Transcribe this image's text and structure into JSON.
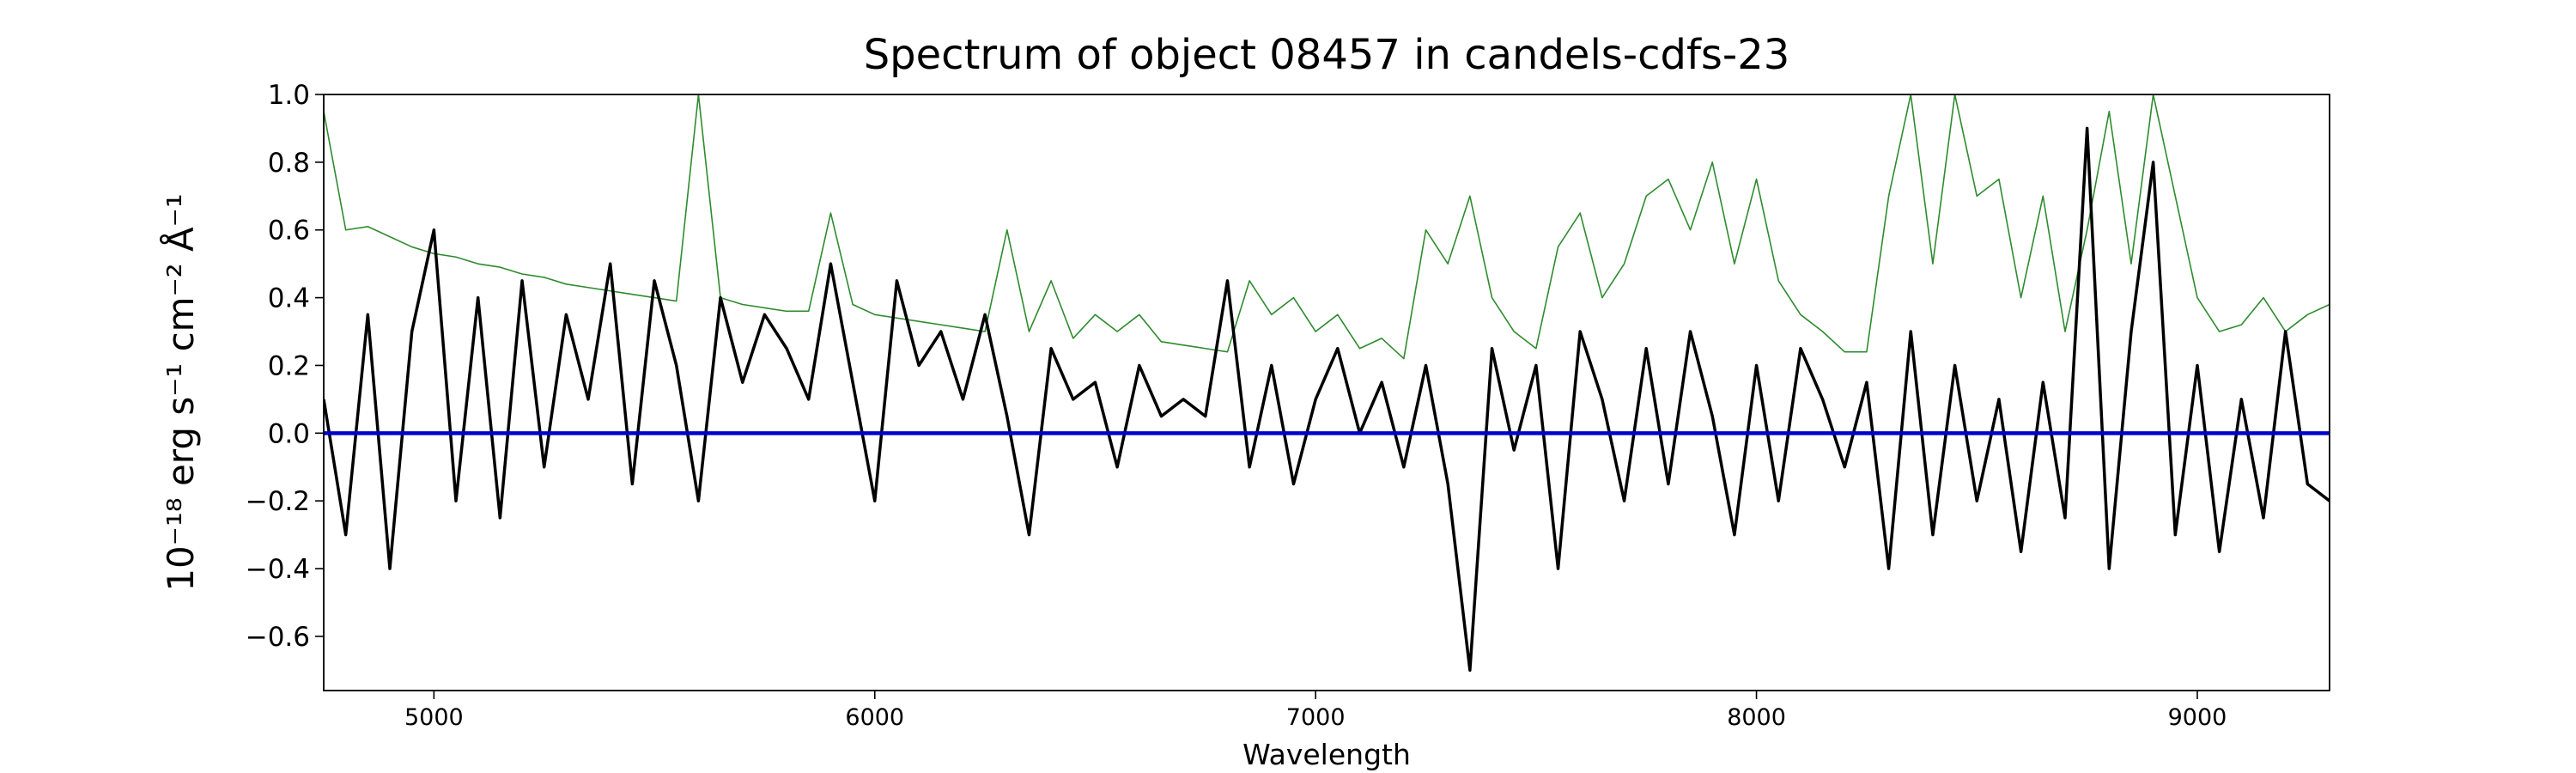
{
  "chart_data": {
    "type": "line",
    "title": "Spectrum of object 08457 in candels-cdfs-23",
    "xlabel": "Wavelength",
    "ylabel": "10⁻¹⁸ erg s⁻¹ cm⁻² Å⁻¹",
    "x": [
      4750,
      4800,
      4850,
      4900,
      4950,
      5000,
      5050,
      5100,
      5150,
      5200,
      5250,
      5300,
      5350,
      5400,
      5450,
      5500,
      5550,
      5600,
      5650,
      5700,
      5750,
      5800,
      5850,
      5900,
      5950,
      6000,
      6050,
      6100,
      6150,
      6200,
      6250,
      6300,
      6350,
      6400,
      6450,
      6500,
      6550,
      6600,
      6650,
      6700,
      6750,
      6800,
      6850,
      6900,
      6950,
      7000,
      7050,
      7100,
      7150,
      7200,
      7250,
      7300,
      7350,
      7400,
      7450,
      7500,
      7550,
      7600,
      7650,
      7700,
      7750,
      7800,
      7850,
      7900,
      7950,
      8000,
      8050,
      8100,
      8150,
      8200,
      8250,
      8300,
      8350,
      8400,
      8450,
      8500,
      8550,
      8600,
      8650,
      8700,
      8750,
      8800,
      8850,
      8900,
      8950,
      9000,
      9050,
      9100,
      9150,
      9200,
      9250,
      9300
    ],
    "series": [
      {
        "color": "#2e8b2e",
        "width": 1.6,
        "values": [
          0.95,
          0.6,
          0.61,
          0.58,
          0.55,
          0.53,
          0.52,
          0.5,
          0.49,
          0.47,
          0.46,
          0.44,
          0.43,
          0.42,
          0.41,
          0.4,
          0.39,
          1.0,
          0.4,
          0.38,
          0.37,
          0.36,
          0.36,
          0.65,
          0.38,
          0.35,
          0.34,
          0.33,
          0.32,
          0.31,
          0.3,
          0.6,
          0.3,
          0.45,
          0.28,
          0.35,
          0.3,
          0.35,
          0.27,
          0.26,
          0.25,
          0.24,
          0.45,
          0.35,
          0.4,
          0.3,
          0.35,
          0.25,
          0.28,
          0.22,
          0.6,
          0.5,
          0.7,
          0.4,
          0.3,
          0.25,
          0.55,
          0.65,
          0.4,
          0.5,
          0.7,
          0.75,
          0.6,
          0.8,
          0.5,
          0.75,
          0.45,
          0.35,
          0.3,
          0.24,
          0.24,
          0.7,
          1.0,
          0.5,
          1.0,
          0.7,
          0.75,
          0.4,
          0.7,
          0.3,
          0.6,
          0.95,
          0.5,
          1.0,
          0.7,
          0.4,
          0.3,
          0.32,
          0.4,
          0.3,
          0.35,
          0.38
        ]
      },
      {
        "color": "#000000",
        "width": 3.5,
        "values": [
          0.1,
          -0.3,
          0.35,
          -0.4,
          0.3,
          0.6,
          -0.2,
          0.4,
          -0.25,
          0.45,
          -0.1,
          0.35,
          0.1,
          0.5,
          -0.15,
          0.45,
          0.2,
          -0.2,
          0.4,
          0.15,
          0.35,
          0.25,
          0.1,
          0.5,
          0.15,
          -0.2,
          0.45,
          0.2,
          0.3,
          0.1,
          0.35,
          0.05,
          -0.3,
          0.25,
          0.1,
          0.15,
          -0.1,
          0.2,
          0.05,
          0.1,
          0.05,
          0.45,
          -0.1,
          0.2,
          -0.15,
          0.1,
          0.25,
          0.0,
          0.15,
          -0.1,
          0.2,
          -0.15,
          -0.7,
          0.25,
          -0.05,
          0.2,
          -0.4,
          0.3,
          0.1,
          -0.2,
          0.25,
          -0.15,
          0.3,
          0.05,
          -0.3,
          0.2,
          -0.2,
          0.25,
          0.1,
          -0.1,
          0.15,
          -0.4,
          0.3,
          -0.3,
          0.2,
          -0.2,
          0.1,
          -0.35,
          0.15,
          -0.25,
          0.9,
          -0.4,
          0.3,
          0.8,
          -0.3,
          0.2,
          -0.35,
          0.1,
          -0.25,
          0.3,
          -0.15,
          -0.2
        ]
      },
      {
        "color": "#0000cc",
        "width": 4.5,
        "values": [
          0,
          0,
          0,
          0,
          0,
          0,
          0,
          0,
          0,
          0,
          0,
          0,
          0,
          0,
          0,
          0,
          0,
          0,
          0,
          0,
          0,
          0,
          0,
          0,
          0,
          0,
          0,
          0,
          0,
          0,
          0,
          0,
          0,
          0,
          0,
          0,
          0,
          0,
          0,
          0,
          0,
          0,
          0,
          0,
          0,
          0,
          0,
          0,
          0,
          0,
          0,
          0,
          0,
          0,
          0,
          0,
          0,
          0,
          0,
          0,
          0,
          0,
          0,
          0,
          0,
          0,
          0,
          0,
          0,
          0,
          0,
          0,
          0,
          0,
          0,
          0,
          0,
          0,
          0,
          0,
          0,
          0,
          0,
          0,
          0,
          0,
          0,
          0,
          0,
          0,
          0,
          0
        ]
      }
    ],
    "xlim": [
      4750,
      9300
    ],
    "xticks": [
      5000,
      6000,
      7000,
      8000,
      9000
    ],
    "ylim": [
      -0.76,
      1.0
    ],
    "yticks": [
      {
        "value": -0.6,
        "label": "−0.6"
      },
      {
        "value": -0.4,
        "label": "−0.4"
      },
      {
        "value": -0.2,
        "label": "−0.2"
      },
      {
        "value": 0,
        "label": "0.0"
      },
      0.2,
      0.4,
      0.6,
      0.8,
      {
        "value": 1.0,
        "label": "1.0"
      }
    ]
  }
}
